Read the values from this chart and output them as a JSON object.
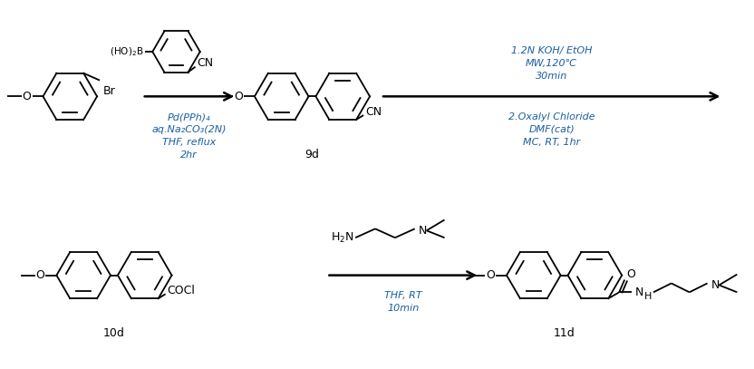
{
  "bg_color": "#ffffff",
  "text_color": "#000000",
  "blue_color": "#1a5fa0",
  "fig_width": 8.32,
  "fig_height": 4.07,
  "label_9d": "9d",
  "label_10d": "10d",
  "label_11d": "11d",
  "r1_reagents_below": [
    "Pd(PPh)₄",
    "aq.Na₂CO₃(2N)",
    "THF, reflux",
    "2hr"
  ],
  "r2_reagents_above": [
    "1.2N KOH/ EtOH",
    "MW,120℃",
    "30min"
  ],
  "r2_reagents_below": [
    "2.Oxalyl Chloride",
    "DMF(cat)",
    "MC, RT, 1hr"
  ],
  "r3_reagents_below": [
    "THF, RT",
    "10min"
  ]
}
